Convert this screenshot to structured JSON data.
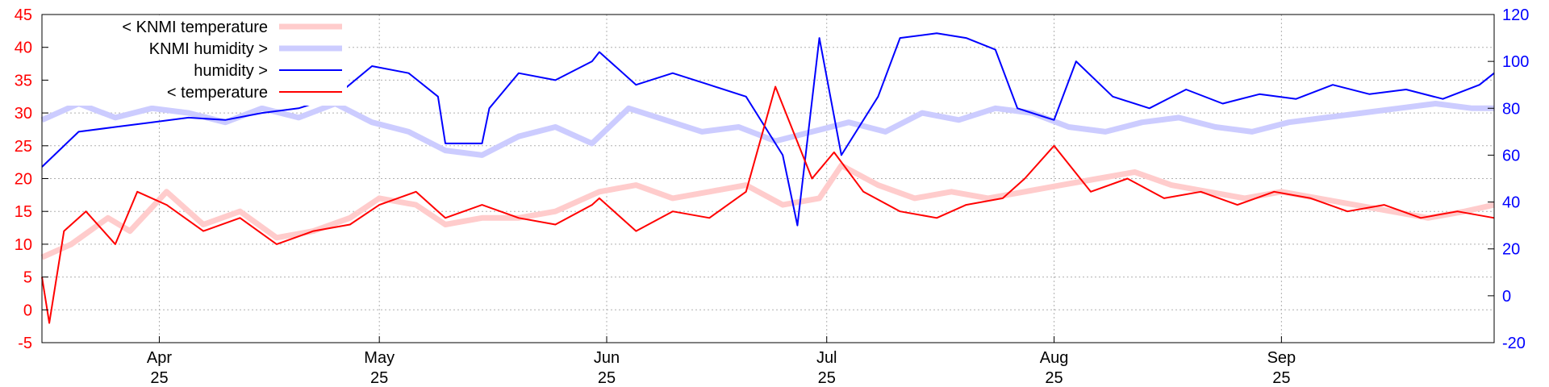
{
  "chart_data": {
    "type": "line",
    "title": "",
    "xlabel": "",
    "ylabel_left": "",
    "ylabel_right": "",
    "x_range": [
      "2025-03-16",
      "2025-09-30"
    ],
    "y_left_range": [
      -5,
      45
    ],
    "y_right_range": [
      -20,
      120
    ],
    "y_left_ticks": [
      "-5",
      "0",
      "5",
      "10",
      "15",
      "20",
      "25",
      "30",
      "35",
      "40",
      "45"
    ],
    "y_right_ticks": [
      "-20",
      "0",
      "20",
      "40",
      "60",
      "80",
      "100",
      "120"
    ],
    "x_ticks": [
      {
        "date": "2025-04-01",
        "month": "Apr",
        "day": "25"
      },
      {
        "date": "2025-05-01",
        "month": "May",
        "day": "25"
      },
      {
        "date": "2025-06-01",
        "month": "Jun",
        "day": "25"
      },
      {
        "date": "2025-07-01",
        "month": "Jul",
        "day": "25"
      },
      {
        "date": "2025-08-01",
        "month": "Aug",
        "day": "25"
      },
      {
        "date": "2025-09-01",
        "month": "Sep",
        "day": "25"
      }
    ],
    "grid": true,
    "legend_position": "top-left",
    "series": [
      {
        "name": "< KNMI temperature",
        "axis": "left",
        "color": "#ffcccc",
        "style": "thick",
        "points": [
          [
            "2025-03-16",
            8
          ],
          [
            "2025-03-20",
            10
          ],
          [
            "2025-03-25",
            14
          ],
          [
            "2025-03-28",
            12
          ],
          [
            "2025-04-02",
            18
          ],
          [
            "2025-04-07",
            13
          ],
          [
            "2025-04-12",
            15
          ],
          [
            "2025-04-17",
            11
          ],
          [
            "2025-04-22",
            12
          ],
          [
            "2025-04-27",
            14
          ],
          [
            "2025-05-01",
            17
          ],
          [
            "2025-05-06",
            16
          ],
          [
            "2025-05-10",
            13
          ],
          [
            "2025-05-15",
            14
          ],
          [
            "2025-05-20",
            14
          ],
          [
            "2025-05-25",
            15
          ],
          [
            "2025-05-31",
            18
          ],
          [
            "2025-06-05",
            19
          ],
          [
            "2025-06-10",
            17
          ],
          [
            "2025-06-15",
            18
          ],
          [
            "2025-06-20",
            19
          ],
          [
            "2025-06-25",
            16
          ],
          [
            "2025-06-30",
            17
          ],
          [
            "2025-07-03",
            22
          ],
          [
            "2025-07-08",
            19
          ],
          [
            "2025-07-13",
            17
          ],
          [
            "2025-07-18",
            18
          ],
          [
            "2025-07-23",
            17
          ],
          [
            "2025-07-28",
            18
          ],
          [
            "2025-08-02",
            19
          ],
          [
            "2025-08-07",
            20
          ],
          [
            "2025-08-12",
            21
          ],
          [
            "2025-08-17",
            19
          ],
          [
            "2025-08-22",
            18
          ],
          [
            "2025-08-27",
            17
          ],
          [
            "2025-09-01",
            18
          ],
          [
            "2025-09-06",
            17
          ],
          [
            "2025-09-11",
            16
          ],
          [
            "2025-09-16",
            15
          ],
          [
            "2025-09-21",
            14
          ],
          [
            "2025-09-26",
            15
          ],
          [
            "2025-09-30",
            16
          ]
        ]
      },
      {
        "name": "KNMI humidity >",
        "axis": "right",
        "color": "#ccccff",
        "style": "thick",
        "points": [
          [
            "2025-03-16",
            75
          ],
          [
            "2025-03-21",
            82
          ],
          [
            "2025-03-26",
            76
          ],
          [
            "2025-03-31",
            80
          ],
          [
            "2025-04-05",
            78
          ],
          [
            "2025-04-10",
            74
          ],
          [
            "2025-04-15",
            80
          ],
          [
            "2025-04-20",
            76
          ],
          [
            "2025-04-25",
            82
          ],
          [
            "2025-04-30",
            74
          ],
          [
            "2025-05-05",
            70
          ],
          [
            "2025-05-10",
            62
          ],
          [
            "2025-05-15",
            60
          ],
          [
            "2025-05-20",
            68
          ],
          [
            "2025-05-25",
            72
          ],
          [
            "2025-05-30",
            65
          ],
          [
            "2025-06-04",
            80
          ],
          [
            "2025-06-09",
            75
          ],
          [
            "2025-06-14",
            70
          ],
          [
            "2025-06-19",
            72
          ],
          [
            "2025-06-24",
            66
          ],
          [
            "2025-06-29",
            70
          ],
          [
            "2025-07-04",
            74
          ],
          [
            "2025-07-09",
            70
          ],
          [
            "2025-07-14",
            78
          ],
          [
            "2025-07-19",
            75
          ],
          [
            "2025-07-24",
            80
          ],
          [
            "2025-07-29",
            78
          ],
          [
            "2025-08-03",
            72
          ],
          [
            "2025-08-08",
            70
          ],
          [
            "2025-08-13",
            74
          ],
          [
            "2025-08-18",
            76
          ],
          [
            "2025-08-23",
            72
          ],
          [
            "2025-08-28",
            70
          ],
          [
            "2025-09-02",
            74
          ],
          [
            "2025-09-07",
            76
          ],
          [
            "2025-09-12",
            78
          ],
          [
            "2025-09-17",
            80
          ],
          [
            "2025-09-22",
            82
          ],
          [
            "2025-09-27",
            80
          ],
          [
            "2025-09-30",
            80
          ]
        ]
      },
      {
        "name": "humidity >",
        "axis": "right",
        "color": "#0000ff",
        "style": "thin",
        "points": [
          [
            "2025-03-16",
            55
          ],
          [
            "2025-03-21",
            70
          ],
          [
            "2025-03-26",
            72
          ],
          [
            "2025-03-31",
            74
          ],
          [
            "2025-04-05",
            76
          ],
          [
            "2025-04-10",
            75
          ],
          [
            "2025-04-15",
            78
          ],
          [
            "2025-04-20",
            80
          ],
          [
            "2025-04-25",
            85
          ],
          [
            "2025-04-30",
            98
          ],
          [
            "2025-05-05",
            95
          ],
          [
            "2025-05-09",
            85
          ],
          [
            "2025-05-10",
            65
          ],
          [
            "2025-05-15",
            65
          ],
          [
            "2025-05-16",
            80
          ],
          [
            "2025-05-20",
            95
          ],
          [
            "2025-05-25",
            92
          ],
          [
            "2025-05-30",
            100
          ],
          [
            "2025-05-31",
            104
          ],
          [
            "2025-06-05",
            90
          ],
          [
            "2025-06-10",
            95
          ],
          [
            "2025-06-15",
            90
          ],
          [
            "2025-06-20",
            85
          ],
          [
            "2025-06-25",
            60
          ],
          [
            "2025-06-27",
            30
          ],
          [
            "2025-06-30",
            110
          ],
          [
            "2025-07-03",
            60
          ],
          [
            "2025-07-08",
            85
          ],
          [
            "2025-07-11",
            110
          ],
          [
            "2025-07-16",
            112
          ],
          [
            "2025-07-20",
            110
          ],
          [
            "2025-07-24",
            105
          ],
          [
            "2025-07-27",
            80
          ],
          [
            "2025-08-01",
            75
          ],
          [
            "2025-08-04",
            100
          ],
          [
            "2025-08-09",
            85
          ],
          [
            "2025-08-14",
            80
          ],
          [
            "2025-08-19",
            88
          ],
          [
            "2025-08-24",
            82
          ],
          [
            "2025-08-29",
            86
          ],
          [
            "2025-09-03",
            84
          ],
          [
            "2025-09-08",
            90
          ],
          [
            "2025-09-13",
            86
          ],
          [
            "2025-09-18",
            88
          ],
          [
            "2025-09-23",
            84
          ],
          [
            "2025-09-28",
            90
          ],
          [
            "2025-09-30",
            95
          ]
        ]
      },
      {
        "name": "< temperature",
        "axis": "left",
        "color": "#ff0000",
        "style": "thin",
        "points": [
          [
            "2025-03-16",
            5
          ],
          [
            "2025-03-17",
            -2
          ],
          [
            "2025-03-19",
            12
          ],
          [
            "2025-03-22",
            15
          ],
          [
            "2025-03-26",
            10
          ],
          [
            "2025-03-29",
            18
          ],
          [
            "2025-04-02",
            16
          ],
          [
            "2025-04-07",
            12
          ],
          [
            "2025-04-12",
            14
          ],
          [
            "2025-04-17",
            10
          ],
          [
            "2025-04-22",
            12
          ],
          [
            "2025-04-27",
            13
          ],
          [
            "2025-05-01",
            16
          ],
          [
            "2025-05-06",
            18
          ],
          [
            "2025-05-09",
            15
          ],
          [
            "2025-05-10",
            14
          ],
          [
            "2025-05-15",
            16
          ],
          [
            "2025-05-20",
            14
          ],
          [
            "2025-05-25",
            13
          ],
          [
            "2025-05-30",
            16
          ],
          [
            "2025-05-31",
            17
          ],
          [
            "2025-06-05",
            12
          ],
          [
            "2025-06-10",
            15
          ],
          [
            "2025-06-15",
            14
          ],
          [
            "2025-06-20",
            18
          ],
          [
            "2025-06-24",
            34
          ],
          [
            "2025-06-29",
            20
          ],
          [
            "2025-07-02",
            24
          ],
          [
            "2025-07-06",
            18
          ],
          [
            "2025-07-11",
            15
          ],
          [
            "2025-07-16",
            14
          ],
          [
            "2025-07-20",
            16
          ],
          [
            "2025-07-25",
            17
          ],
          [
            "2025-07-28",
            20
          ],
          [
            "2025-08-01",
            25
          ],
          [
            "2025-08-06",
            18
          ],
          [
            "2025-08-11",
            20
          ],
          [
            "2025-08-16",
            17
          ],
          [
            "2025-08-21",
            18
          ],
          [
            "2025-08-26",
            16
          ],
          [
            "2025-08-31",
            18
          ],
          [
            "2025-09-05",
            17
          ],
          [
            "2025-09-10",
            15
          ],
          [
            "2025-09-15",
            16
          ],
          [
            "2025-09-20",
            14
          ],
          [
            "2025-09-25",
            15
          ],
          [
            "2025-09-30",
            14
          ]
        ]
      }
    ]
  }
}
